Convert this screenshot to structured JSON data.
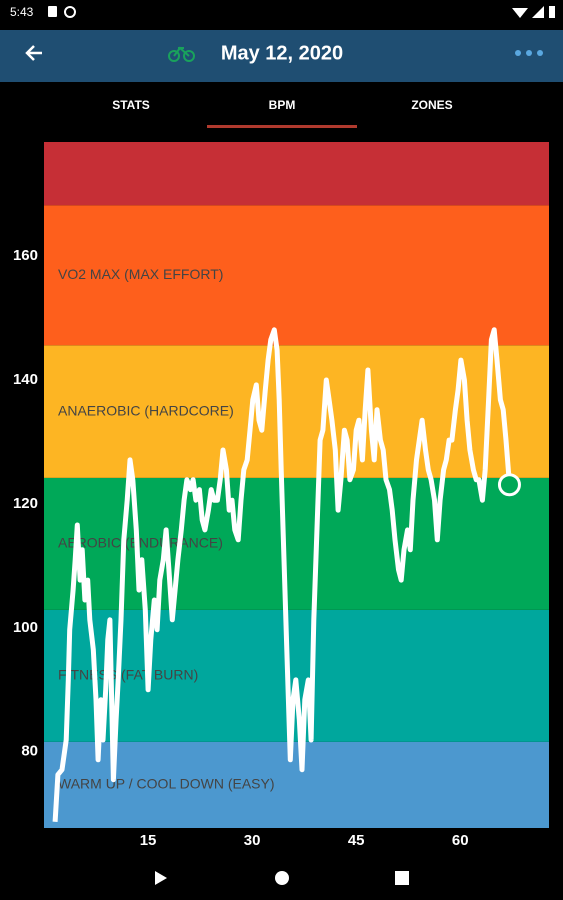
{
  "status_bar": {
    "time": "5:43"
  },
  "app_bar": {
    "title": "May 12, 2020"
  },
  "tabs": [
    "STATS",
    "BPM",
    "ZONES"
  ],
  "chart_data": {
    "type": "line",
    "color": "#ffffff",
    "xlim": [
      0,
      72.8
    ],
    "ylim": [
      67.7,
      178.4
    ],
    "xticks": [
      15,
      30,
      45,
      60
    ],
    "yticks": [
      80,
      100,
      120,
      140,
      160
    ],
    "zones": [
      {
        "label": "WARM UP / COOL DOWN (EASY)",
        "from": 67.7,
        "to": 81.6,
        "color": "#4c98cf"
      },
      {
        "label": "FITNESS (FAT BURN)",
        "from": 81.6,
        "to": 102.9,
        "color": "#00a79d"
      },
      {
        "label": "AEROBIC (ENDURANCE)",
        "from": 102.9,
        "to": 124.2,
        "color": "#00a858"
      },
      {
        "label": "ANAEROBIC (HARDCORE)",
        "from": 124.2,
        "to": 145.6,
        "color": "#fdb523"
      },
      {
        "label": "VO2 MAX (MAX EFFORT)",
        "from": 145.6,
        "to": 168.2,
        "color": "#fe5f1c"
      },
      {
        "from": 168.2,
        "to": 178.4,
        "color": "#c62f36"
      }
    ],
    "x": [
      1.6,
      2.0,
      2.6,
      3.2,
      3.5,
      3.7,
      4.2,
      4.5,
      4.8,
      5.2,
      5.5,
      5.9,
      6.3,
      6.6,
      7.1,
      7.5,
      7.8,
      8.2,
      8.5,
      8.9,
      9.2,
      9.5,
      10.0,
      10.4,
      10.7,
      11.1,
      11.5,
      12.0,
      12.4,
      12.8,
      13.3,
      13.7,
      14.1,
      14.6,
      15.0,
      15.4,
      15.9,
      16.3,
      16.7,
      17.2,
      17.6,
      18.0,
      18.5,
      18.9,
      19.3,
      19.8,
      20.2,
      20.6,
      21.1,
      21.5,
      21.9,
      22.4,
      22.8,
      23.2,
      23.7,
      24.1,
      24.5,
      25.0,
      25.4,
      25.8,
      26.3,
      26.7,
      27.1,
      27.5,
      28.0,
      28.4,
      28.8,
      29.3,
      29.7,
      30.1,
      30.6,
      31.0,
      31.4,
      31.9,
      32.3,
      32.7,
      33.2,
      33.6,
      33.9,
      34.2,
      34.6,
      35.0,
      35.5,
      35.9,
      36.3,
      36.8,
      37.2,
      37.6,
      38.1,
      38.5,
      38.9,
      39.4,
      39.8,
      40.2,
      40.7,
      41.1,
      41.5,
      42.0,
      42.4,
      42.8,
      43.3,
      43.7,
      44.1,
      44.6,
      45.0,
      45.4,
      45.9,
      46.3,
      46.7,
      47.2,
      47.6,
      48.0,
      48.5,
      48.9,
      49.3,
      49.8,
      50.2,
      50.6,
      51.1,
      51.5,
      51.9,
      52.4,
      52.8,
      53.2,
      53.7,
      54.1,
      54.5,
      55.0,
      55.4,
      55.8,
      56.3,
      56.7,
      57.1,
      57.6,
      58.0,
      58.4,
      58.8,
      59.3,
      59.7,
      60.1,
      60.6,
      61.0,
      61.4,
      61.9,
      62.3,
      62.7,
      63.2,
      63.6,
      64.1,
      64.5,
      64.9,
      65.3,
      65.8,
      66.2,
      66.6,
      67.1
    ],
    "values": [
      68.7,
      76.3,
      77.1,
      81.9,
      91.6,
      99.7,
      106.1,
      111.0,
      116.6,
      107.7,
      112.6,
      104.5,
      107.7,
      101.3,
      96.5,
      88.4,
      78.7,
      88.4,
      81.9,
      90.0,
      98.1,
      101.3,
      75.5,
      85.2,
      91.6,
      101.3,
      114.2,
      120.6,
      127.1,
      123.9,
      115.8,
      106.1,
      111.0,
      102.9,
      90.0,
      98.1,
      104.5,
      99.7,
      107.7,
      111.0,
      115.8,
      109.4,
      101.3,
      106.1,
      111.0,
      115.8,
      120.6,
      123.9,
      122.3,
      123.9,
      120.6,
      122.3,
      117.4,
      115.8,
      119.0,
      122.3,
      120.6,
      120.6,
      123.9,
      128.7,
      125.5,
      119.0,
      120.6,
      115.8,
      114.2,
      120.6,
      125.5,
      127.1,
      131.9,
      136.8,
      139.2,
      133.5,
      131.9,
      138.4,
      143.2,
      146.5,
      148.1,
      144.8,
      136.8,
      125.5,
      111.0,
      96.5,
      78.7,
      88.4,
      91.6,
      85.2,
      77.1,
      88.4,
      91.6,
      81.9,
      101.3,
      117.4,
      130.3,
      131.9,
      140.0,
      136.8,
      133.5,
      128.7,
      119.0,
      123.9,
      131.9,
      130.3,
      123.9,
      125.5,
      131.9,
      133.5,
      127.1,
      135.2,
      141.6,
      131.9,
      127.1,
      135.2,
      130.3,
      128.7,
      123.9,
      122.3,
      119.0,
      114.2,
      109.4,
      107.7,
      112.6,
      115.8,
      112.6,
      120.6,
      127.1,
      130.3,
      133.5,
      128.7,
      125.5,
      123.9,
      120.6,
      114.2,
      120.6,
      125.5,
      127.1,
      130.3,
      130.3,
      135.2,
      138.4,
      143.2,
      140.0,
      133.5,
      128.7,
      125.5,
      123.9,
      123.9,
      120.6,
      125.5,
      136.8,
      146.5,
      148.1,
      143.2,
      136.8,
      135.2,
      130.3,
      123.1
    ]
  }
}
